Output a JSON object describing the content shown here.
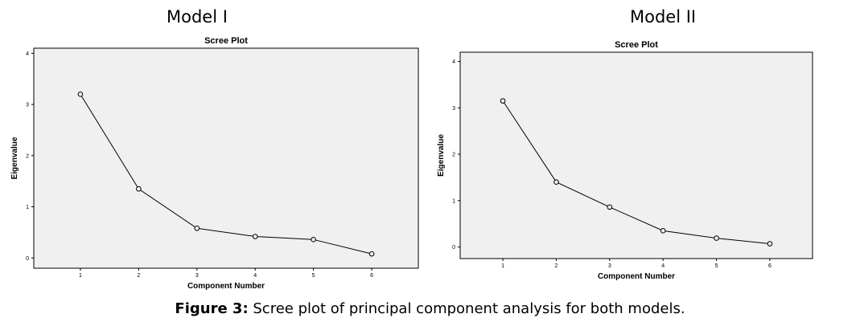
{
  "panels": [
    {
      "model_title": "Model I",
      "chart_data": {
        "type": "line",
        "title": "Scree Plot",
        "xlabel": "Component Number",
        "ylabel": "Eigenvalue",
        "x": [
          1,
          2,
          3,
          4,
          5,
          6
        ],
        "y": [
          3.2,
          1.35,
          0.58,
          0.42,
          0.36,
          0.08
        ],
        "xlim": [
          0.2,
          6.8
        ],
        "ylim": [
          -0.2,
          4.1
        ],
        "xticks": [
          "1",
          "2",
          "3",
          "4",
          "5",
          "6"
        ],
        "yticks": [
          "0",
          "1",
          "2",
          "3",
          "4"
        ],
        "plot_bg": "#f0f0f0",
        "grid": false
      }
    },
    {
      "model_title": "Model II",
      "chart_data": {
        "type": "line",
        "title": "Scree Plot",
        "xlabel": "Component Number",
        "ylabel": "Eigenvalue",
        "x": [
          1,
          2,
          3,
          4,
          5,
          6
        ],
        "y": [
          3.15,
          1.4,
          0.86,
          0.35,
          0.19,
          0.07
        ],
        "xlim": [
          0.2,
          6.8
        ],
        "ylim": [
          -0.25,
          4.2
        ],
        "xticks": [
          "1",
          "2",
          "3",
          "4",
          "5",
          "6"
        ],
        "yticks": [
          "0",
          "1",
          "2",
          "3",
          "4"
        ],
        "plot_bg": "#f0f0f0",
        "grid": false
      }
    }
  ],
  "caption": {
    "lead": "Figure 3:",
    "text": " Scree plot of principal component analysis for both models."
  }
}
